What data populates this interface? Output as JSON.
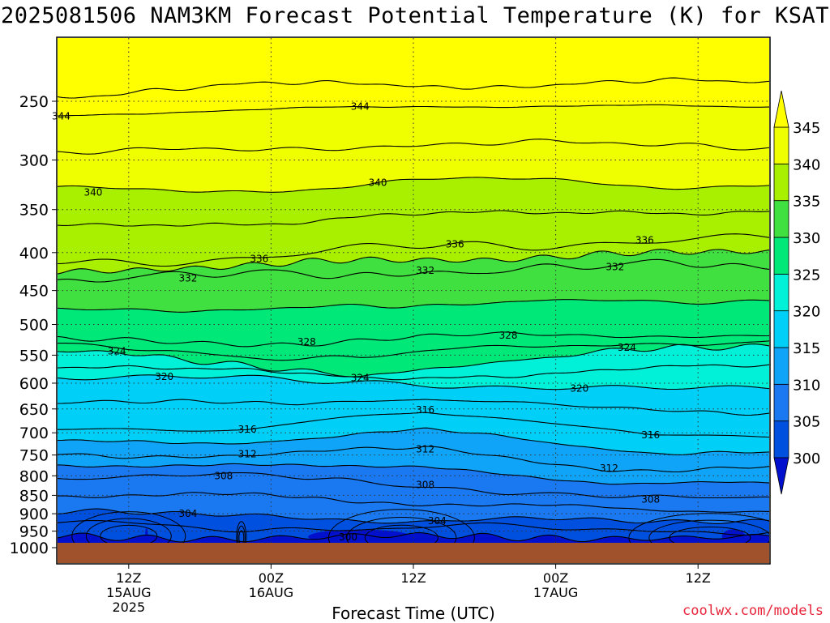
{
  "title": "2025081506 NAM3KM Forecast Potential Temperature (K) for KSAT",
  "credit": "coolwx.com/models",
  "chart_data": {
    "type": "heatmap",
    "title": "2025081506 NAM3KM Forecast Potential Temperature (K) for KSAT",
    "xlabel": "Forecast Time (UTC)",
    "ylabel": "",
    "x_start": "2025-08-15 06Z",
    "x_range_hours": [
      0,
      60
    ],
    "x_ticks": [
      {
        "hour": 6,
        "lines": [
          "12Z",
          "15AUG",
          "2025"
        ]
      },
      {
        "hour": 18,
        "lines": [
          "00Z",
          "16AUG"
        ]
      },
      {
        "hour": 30,
        "lines": [
          "12Z"
        ]
      },
      {
        "hour": 42,
        "lines": [
          "00Z",
          "17AUG"
        ]
      },
      {
        "hour": 54,
        "lines": [
          "12Z"
        ]
      }
    ],
    "y_scale": "log-pressure",
    "y_range_hPa": [
      1000,
      200
    ],
    "y_ticks": [
      250,
      300,
      350,
      400,
      450,
      500,
      550,
      600,
      650,
      700,
      750,
      800,
      850,
      900,
      950,
      1000
    ],
    "grid": true,
    "colorbar": {
      "levels": [
        300,
        305,
        310,
        315,
        320,
        325,
        330,
        335,
        340,
        345
      ],
      "colors": [
        "#0010cc",
        "#0050e0",
        "#1a78f0",
        "#10a4f8",
        "#00d0f8",
        "#00f0d8",
        "#00e878",
        "#40e040",
        "#a8f000",
        "#f0ff00",
        "#ffff00"
      ],
      "extend": "both"
    },
    "contour_interval_K": 2,
    "contour_labels": [
      {
        "value": 344,
        "hour": 0.3,
        "p": 262
      },
      {
        "value": 344,
        "hour": 25.5,
        "p": 254
      },
      {
        "value": 340,
        "hour": 3,
        "p": 332
      },
      {
        "value": 340,
        "hour": 27,
        "p": 322
      },
      {
        "value": 336,
        "hour": 17,
        "p": 408
      },
      {
        "value": 336,
        "hour": 33.5,
        "p": 390
      },
      {
        "value": 336,
        "hour": 49.5,
        "p": 385
      },
      {
        "value": 332,
        "hour": 11,
        "p": 433
      },
      {
        "value": 332,
        "hour": 31,
        "p": 423
      },
      {
        "value": 332,
        "hour": 47,
        "p": 418
      },
      {
        "value": 328,
        "hour": 21,
        "p": 528
      },
      {
        "value": 328,
        "hour": 38,
        "p": 517
      },
      {
        "value": 324,
        "hour": 5,
        "p": 543
      },
      {
        "value": 324,
        "hour": 25.5,
        "p": 590
      },
      {
        "value": 324,
        "hour": 48,
        "p": 537
      },
      {
        "value": 320,
        "hour": 9,
        "p": 588
      },
      {
        "value": 320,
        "hour": 44,
        "p": 610
      },
      {
        "value": 316,
        "hour": 16,
        "p": 693
      },
      {
        "value": 316,
        "hour": 31,
        "p": 652
      },
      {
        "value": 316,
        "hour": 50,
        "p": 705
      },
      {
        "value": 312,
        "hour": 16,
        "p": 748
      },
      {
        "value": 312,
        "hour": 31,
        "p": 737
      },
      {
        "value": 312,
        "hour": 46.5,
        "p": 781
      },
      {
        "value": 308,
        "hour": 14,
        "p": 800
      },
      {
        "value": 308,
        "hour": 31,
        "p": 823
      },
      {
        "value": 308,
        "hour": 50,
        "p": 861
      },
      {
        "value": 304,
        "hour": 11,
        "p": 900
      },
      {
        "value": 304,
        "hour": 32,
        "p": 920
      },
      {
        "value": 300,
        "hour": 24.5,
        "p": 968
      }
    ]
  }
}
